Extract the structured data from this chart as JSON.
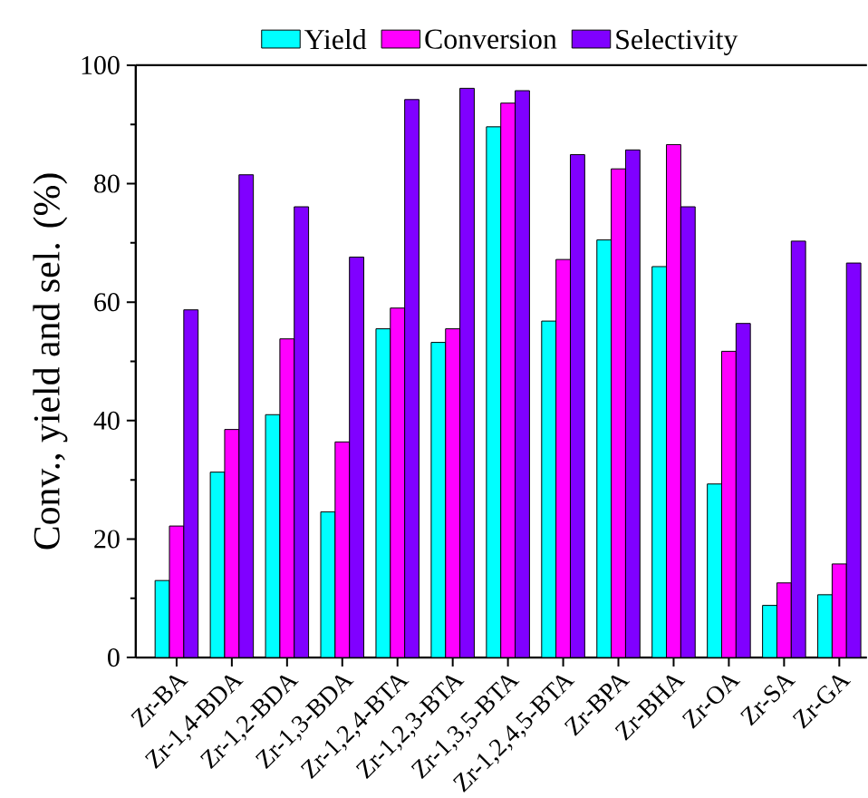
{
  "chart_data": {
    "type": "bar",
    "ylabel": "Conv., yield and sel. (%)",
    "categories": [
      "Zr-BA",
      "Zr-1,4-BDA",
      "Zr-1,2-BDA",
      "Zr-1,3-BDA",
      "Zr-1,2,4-BTA",
      "Zr-1,2,3-BTA",
      "Zr-1,3,5-BTA",
      "Zr-1,2,4,5-BTA",
      "Zr-BPA",
      "Zr-BHA",
      "Zr-OA",
      "Zr-SA",
      "Zr-GA"
    ],
    "series": [
      {
        "name": "Yield",
        "color": "#00ffff",
        "values": [
          13,
          31.3,
          41,
          24.6,
          55.5,
          53.2,
          89.6,
          56.8,
          70.5,
          66,
          29.3,
          8.8,
          10.6
        ]
      },
      {
        "name": "Conversion",
        "color": "#ff00ff",
        "values": [
          22.2,
          38.5,
          53.8,
          36.4,
          59,
          55.5,
          93.6,
          67.2,
          82.5,
          86.6,
          51.7,
          12.6,
          15.8
        ]
      },
      {
        "name": "Selectivity",
        "color": "#8000ff",
        "values": [
          58.7,
          81.5,
          76.1,
          67.6,
          94.2,
          96.1,
          95.7,
          84.9,
          85.7,
          76.1,
          56.4,
          70.3,
          66.6
        ]
      }
    ],
    "ylim": [
      0,
      100
    ],
    "yticks": [
      0,
      20,
      40,
      60,
      80,
      100
    ],
    "grid": false,
    "legend": "top"
  }
}
